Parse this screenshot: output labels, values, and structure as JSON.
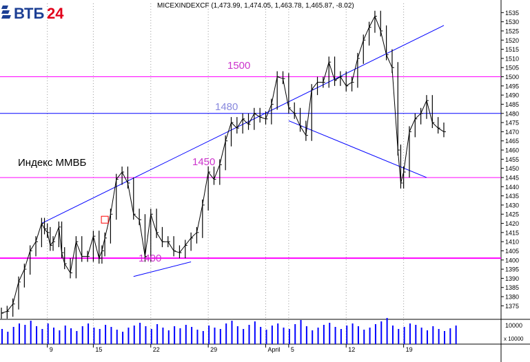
{
  "logo": {
    "text": "ВТБ24",
    "colors": {
      "vtb": "#1c3f94",
      "num": "#e2001a"
    }
  },
  "header": {
    "ticker_line": "MICEXINDEXCF (1,473.99, 1,474.05, 1,463.78, 1,465.87, -8.02)"
  },
  "annotations": {
    "index_name": "Индекс ММВБ",
    "lvl_1500": "1500",
    "lvl_1480": "1480",
    "lvl_1450": "1450",
    "lvl_1400": "1400"
  },
  "colors": {
    "price": "#000000",
    "magenta_line": "#ff00ff",
    "magenta_text": "#cc33cc",
    "blue_line": "#0000ff",
    "blue_text": "#8888dd",
    "marker": "#ff0000",
    "volume": "#0000ff",
    "axis": "#000000"
  },
  "chart_data": {
    "type": "line",
    "title": "MICEXINDEXCF",
    "ylim": [
      1368,
      1540
    ],
    "y_ticks": [
      1375,
      1380,
      1385,
      1390,
      1395,
      1400,
      1405,
      1410,
      1415,
      1420,
      1425,
      1430,
      1435,
      1440,
      1445,
      1450,
      1455,
      1460,
      1465,
      1470,
      1475,
      1480,
      1485,
      1490,
      1495,
      1500,
      1505,
      1510,
      1515,
      1520,
      1525,
      1530,
      1535
    ],
    "x_labels": [
      {
        "label": "9",
        "t": 8
      },
      {
        "label": "15",
        "t": 16
      },
      {
        "label": "22",
        "t": 26
      },
      {
        "label": "29",
        "t": 36
      },
      {
        "label": "April",
        "t": 46
      },
      {
        "label": "5",
        "t": 50
      },
      {
        "label": "12",
        "t": 60
      },
      {
        "label": "19",
        "t": 70
      }
    ],
    "t_range": [
      0,
      80
    ],
    "series": [
      {
        "t": [
          0,
          1,
          2,
          3,
          4,
          5,
          6,
          7,
          7.5,
          8,
          8.5,
          9,
          10,
          10.5,
          11,
          12,
          13,
          14,
          15,
          16,
          17,
          17.5,
          18,
          19,
          20,
          21,
          22,
          23,
          24,
          25,
          26,
          27,
          28,
          29,
          30,
          31,
          32,
          33,
          34,
          35,
          36,
          37,
          38,
          39,
          40,
          41,
          42,
          43,
          44,
          45,
          46,
          47,
          48,
          49,
          50,
          51,
          52,
          53,
          54,
          55,
          56,
          57,
          58,
          59,
          60,
          61,
          62,
          63,
          64,
          65,
          66,
          67,
          68,
          69,
          69.5,
          70,
          71,
          72,
          73,
          74,
          75,
          76,
          77
        ],
        "values": [
          1371,
          1372,
          1376,
          1388,
          1395,
          1405,
          1410,
          1420,
          1417,
          1415,
          1408,
          1410,
          1418,
          1404,
          1398,
          1393,
          1410,
          1402,
          1402,
          1413,
          1401,
          1405,
          1412,
          1425,
          1444,
          1448,
          1442,
          1425,
          1422,
          1402,
          1425,
          1415,
          1410,
          1410,
          1405,
          1404,
          1408,
          1412,
          1415,
          1430,
          1448,
          1444,
          1452,
          1465,
          1475,
          1472,
          1477,
          1474,
          1480,
          1478,
          1477,
          1485,
          1500,
          1499,
          1483,
          1480,
          1473,
          1468,
          1493,
          1497,
          1497,
          1508,
          1498,
          1500,
          1495,
          1497,
          1510,
          1520,
          1527,
          1533,
          1525,
          1512,
          1505,
          1460,
          1442,
          1448,
          1470,
          1477,
          1480,
          1487,
          1475,
          1472,
          1470
        ]
      }
    ],
    "volume": [
      22,
      18,
      25,
      30,
      28,
      34,
      26,
      22,
      30,
      24,
      20,
      27,
      23,
      19,
      26,
      30,
      24,
      22,
      28,
      25,
      21,
      18,
      24,
      27,
      31,
      26,
      22,
      29,
      24,
      20,
      26,
      23,
      28,
      25,
      21,
      19,
      27,
      24,
      22,
      30,
      34,
      26,
      22,
      28,
      33,
      25,
      21,
      27,
      30,
      24,
      22,
      29,
      35,
      26,
      20,
      24,
      28,
      31,
      25,
      22,
      27,
      30,
      26,
      21,
      24,
      29,
      33,
      38,
      27,
      22,
      25,
      30,
      28,
      24,
      20,
      26,
      22,
      19,
      23,
      27
    ],
    "volume_ticks": [
      "10000",
      "x 10000"
    ],
    "h_levels": [
      {
        "value": 1500,
        "color": "magenta"
      },
      {
        "value": 1480,
        "color": "blue"
      },
      {
        "value": 1445,
        "color": "magenta"
      },
      {
        "value": 1401,
        "color": "magenta",
        "bold": true
      }
    ],
    "trendlines": [
      {
        "t1": 7,
        "v1": 1420,
        "t2": 77,
        "v2": 1528
      },
      {
        "t1": 50,
        "v1": 1476,
        "t2": 74,
        "v2": 1445
      },
      {
        "t1": 23,
        "v1": 1391,
        "t2": 33,
        "v2": 1399
      }
    ],
    "marker": {
      "t": 18,
      "v": 1422
    }
  }
}
